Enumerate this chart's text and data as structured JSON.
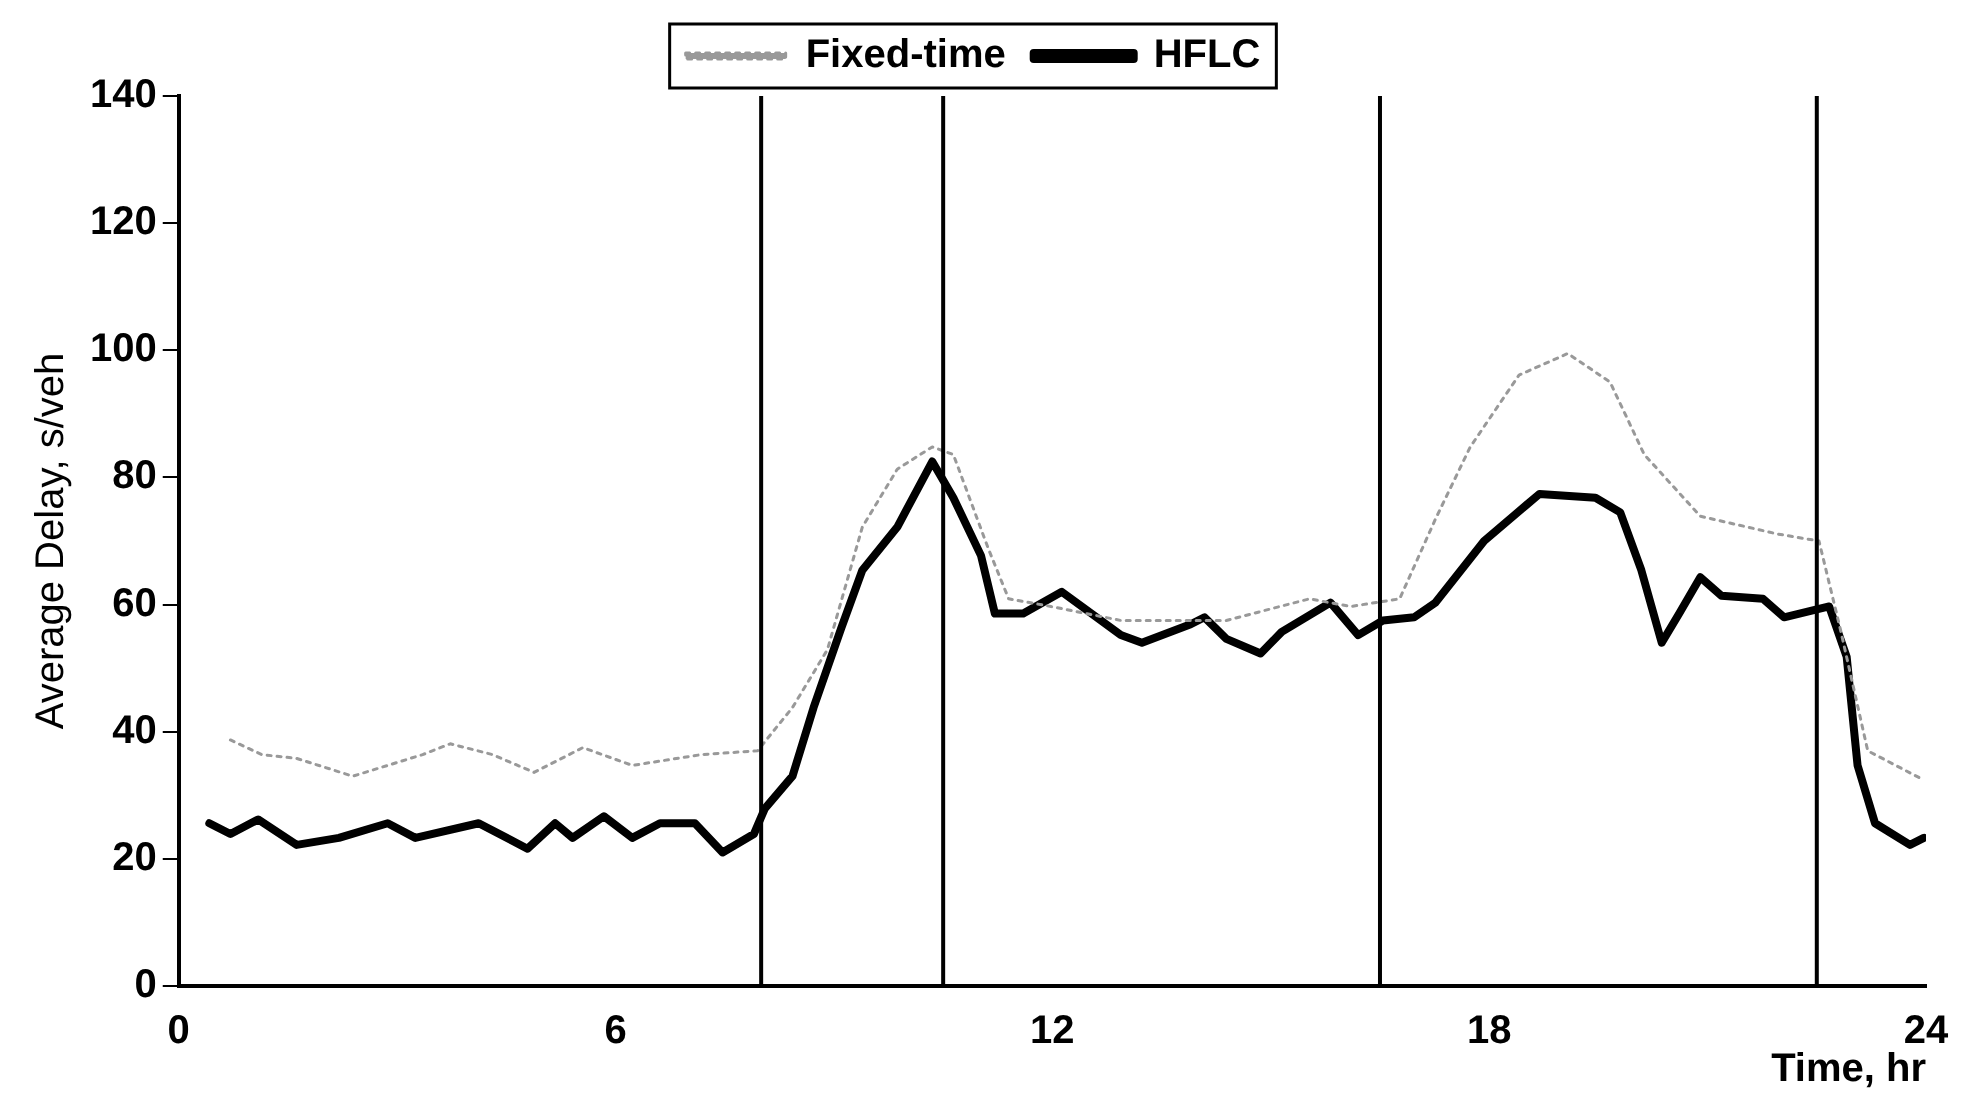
{
  "chart_data": {
    "type": "line",
    "xlabel": "Time, hr",
    "ylabel": "Average Delay, s/veh",
    "xlim": [
      0,
      24
    ],
    "xticks": [
      0,
      6,
      12,
      18,
      24
    ],
    "ylim": [
      0,
      140
    ],
    "yticks": [
      0,
      20,
      40,
      60,
      80,
      100,
      120,
      140
    ],
    "grid": false,
    "legend": "top",
    "marker": "none",
    "series": [
      {
        "name": "Fixed-time",
        "color": "#999999",
        "line_style": "dotted",
        "x": [
          0.71,
          1.14,
          1.62,
          2.39,
          3.35,
          3.73,
          4.31,
          4.88,
          5.55,
          6.23,
          7.18,
          7.95,
          8.43,
          8.91,
          9.39,
          9.87,
          10.35,
          10.64,
          11.12,
          11.4,
          11.98,
          12.94,
          14.39,
          15.53,
          16.1,
          16.77,
          17.26,
          17.74,
          18.41,
          19.08,
          19.66,
          20.13,
          20.9,
          21.96,
          22.53,
          22.82,
          23.2,
          23.97
        ],
        "values": [
          38.7,
          36.4,
          35.8,
          33,
          36.4,
          38.1,
          36.4,
          33.6,
          37.5,
          34.7,
          36.4,
          37,
          43.8,
          52.9,
          72.2,
          81.3,
          84.8,
          83.6,
          68.8,
          60.9,
          59.7,
          57.5,
          57.5,
          60.9,
          59.7,
          60.9,
          73.4,
          84.8,
          96.1,
          99.5,
          95,
          83.6,
          73.9,
          71.1,
          70,
          56.3,
          37,
          32.4
        ]
      },
      {
        "name": "HFLC",
        "color": "#000000",
        "line_style": "solid",
        "x": [
          0.42,
          0.71,
          1.09,
          1.62,
          2.2,
          2.87,
          3.25,
          4.12,
          4.79,
          5.17,
          5.41,
          5.84,
          6.23,
          6.61,
          7.09,
          7.47,
          7.9,
          8.05,
          8.43,
          8.72,
          9.1,
          9.39,
          9.87,
          10.35,
          10.64,
          11.02,
          11.21,
          11.6,
          12.13,
          12.94,
          13.23,
          13.9,
          14.09,
          14.39,
          14.86,
          15.15,
          15.82,
          16.2,
          16.54,
          16.97,
          17.26,
          17.93,
          18.69,
          19.46,
          19.8,
          20.09,
          20.37,
          20.61,
          20.9,
          21.19,
          21.76,
          22.05,
          22.67,
          22.91,
          23.06,
          23.3,
          23.78,
          23.97
        ],
        "values": [
          25.6,
          23.9,
          26.2,
          22.2,
          23.3,
          25.6,
          23.3,
          25.6,
          21.6,
          25.6,
          23.3,
          26.7,
          23.3,
          25.6,
          25.6,
          21,
          23.9,
          27.9,
          33,
          43.8,
          56.3,
          65.4,
          72.2,
          82.5,
          76.8,
          67.7,
          58.6,
          58.6,
          62,
          55.2,
          54,
          56.9,
          58,
          54.6,
          52.3,
          55.7,
          60.3,
          55.2,
          57.5,
          58,
          60.3,
          70,
          77.4,
          76.8,
          74.5,
          65.4,
          54,
          58.6,
          64.3,
          61.4,
          60.9,
          58,
          59.7,
          51.8,
          34.7,
          25.6,
          22.2,
          23.3
        ]
      }
    ],
    "ref_lines": [
      {
        "axis": "x",
        "value": 8,
        "color": "#000000"
      },
      {
        "axis": "x",
        "value": 10.5,
        "color": "#000000"
      },
      {
        "axis": "x",
        "value": 16.5,
        "color": "#000000"
      },
      {
        "axis": "x",
        "value": 22.5,
        "color": "#000000"
      }
    ]
  }
}
